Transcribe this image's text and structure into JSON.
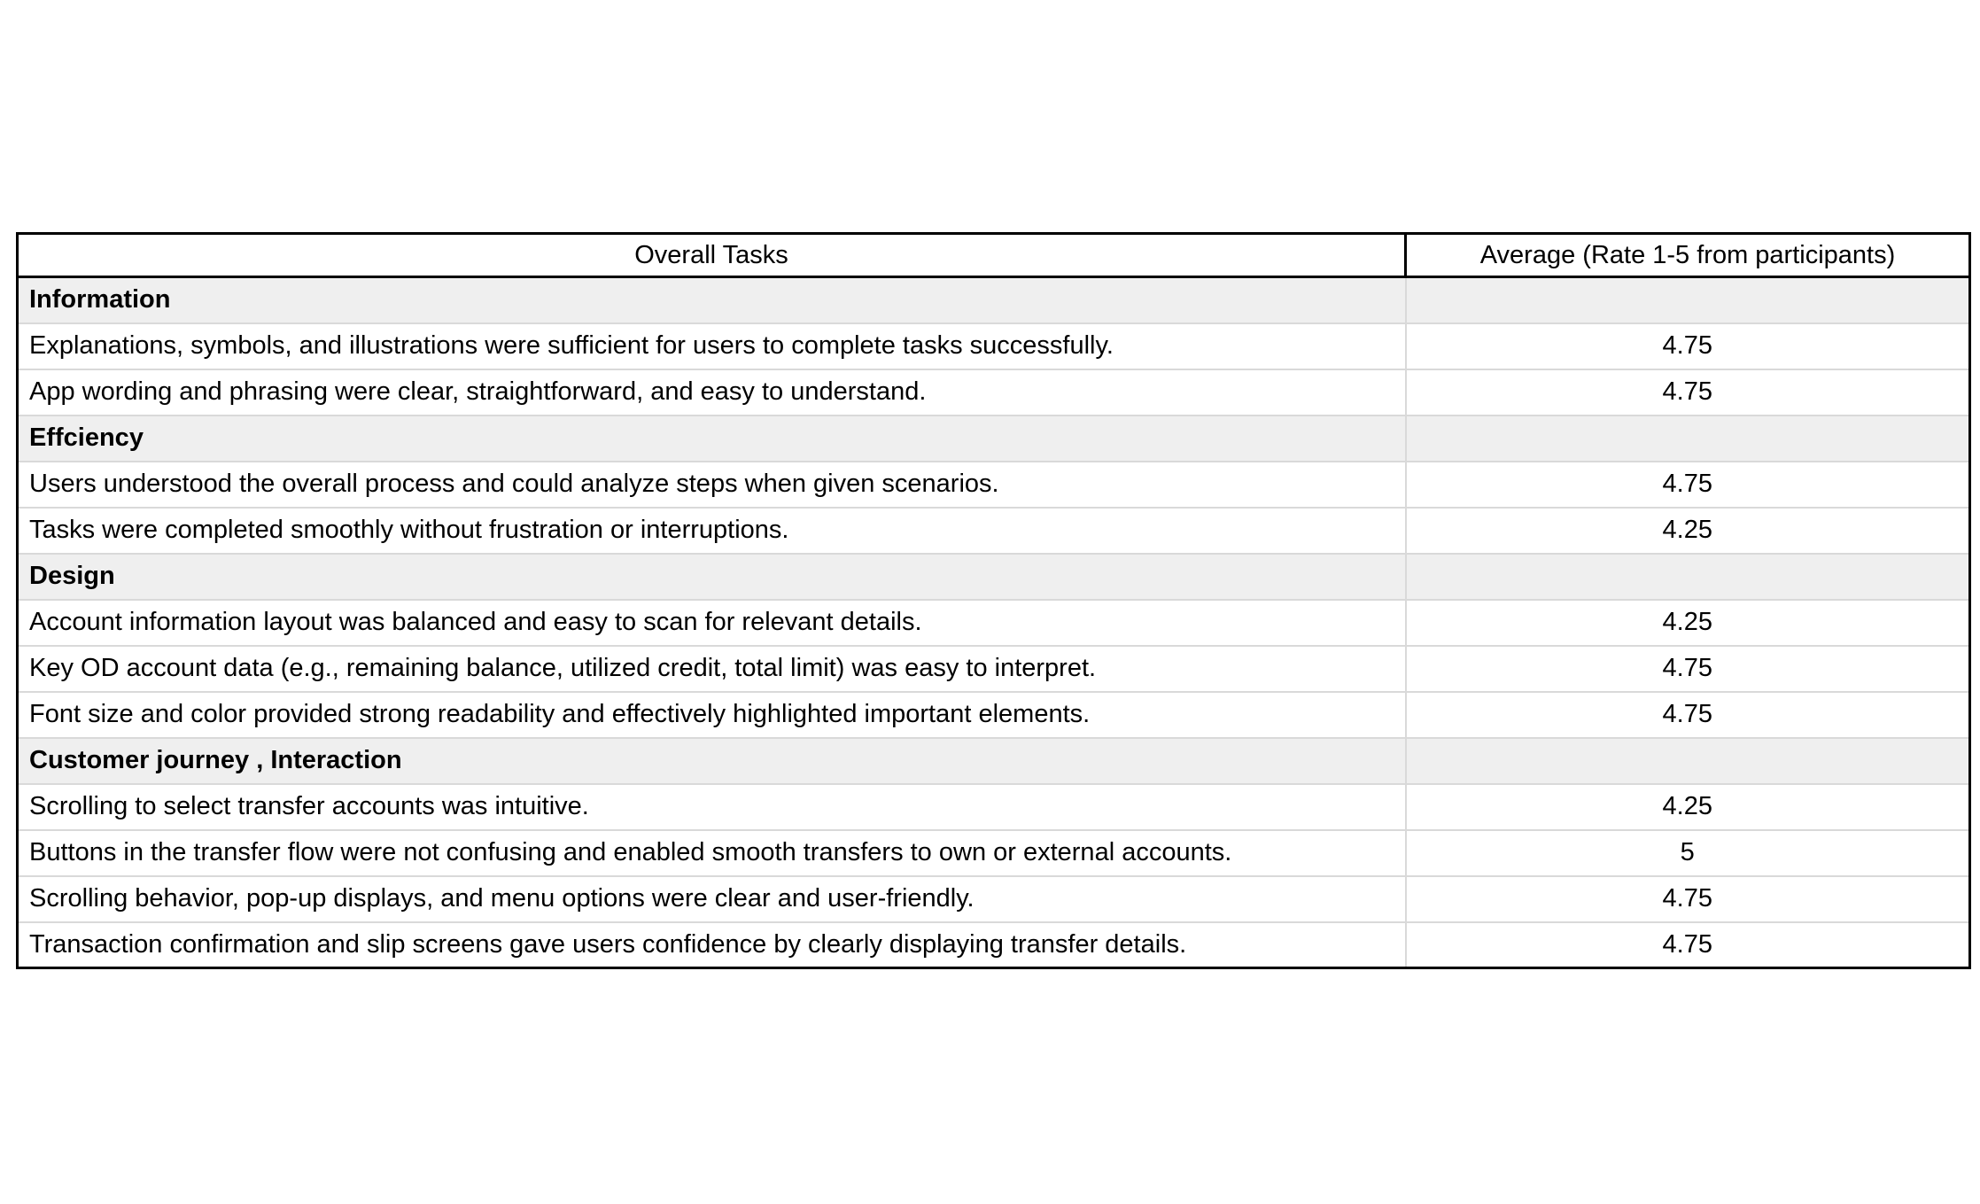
{
  "table": {
    "headers": [
      "Overall Tasks",
      "Average (Rate 1-5 from participants)"
    ],
    "rows": [
      {
        "type": "section",
        "label": "Information"
      },
      {
        "type": "item",
        "task": "Explanations, symbols, and illustrations were sufficient for users to complete tasks successfully.",
        "value": "4.75"
      },
      {
        "type": "item",
        "task": "App wording and phrasing were clear, straightforward, and easy to understand.",
        "value": "4.75"
      },
      {
        "type": "section",
        "label": "Effciency"
      },
      {
        "type": "item",
        "task": "Users understood the overall process and could analyze steps when given scenarios.",
        "value": "4.75"
      },
      {
        "type": "item",
        "task": "Tasks were completed smoothly without frustration or interruptions.",
        "value": "4.25"
      },
      {
        "type": "section",
        "label": "Design"
      },
      {
        "type": "item",
        "task": "Account information layout was balanced and easy to scan for relevant details.",
        "value": "4.25"
      },
      {
        "type": "item",
        "task": "Key OD account data (e.g., remaining balance, utilized credit, total limit) was easy to interpret.",
        "value": "4.75"
      },
      {
        "type": "item",
        "task": "Font size and color provided strong readability and effectively highlighted important elements.",
        "value": "4.75"
      },
      {
        "type": "section",
        "label": "Customer journey , Interaction"
      },
      {
        "type": "item",
        "task": "Scrolling to select transfer accounts was intuitive.",
        "value": "4.25"
      },
      {
        "type": "item",
        "task": "Buttons in the transfer flow were not confusing and enabled smooth transfers to own or external accounts.",
        "value": "5"
      },
      {
        "type": "item",
        "task": "Scrolling behavior, pop-up displays, and menu options were clear and user-friendly.",
        "value": "4.75"
      },
      {
        "type": "item",
        "task": "Transaction confirmation and slip screens gave users confidence by clearly displaying transfer details.",
        "value": "4.75"
      }
    ],
    "colors": {
      "section_row_background": "#efefef",
      "outer_border": "#000000",
      "grid_line": "#d9d9d9",
      "text": "#000000"
    }
  }
}
